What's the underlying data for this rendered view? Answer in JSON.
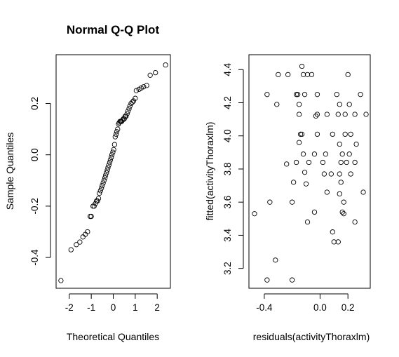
{
  "chart_data": [
    {
      "type": "scatter",
      "title": "Normal Q-Q Plot",
      "xlabel": "Theoretical Quantiles",
      "ylabel": "Sample Quantiles",
      "xlim": [
        -2.6,
        2.6
      ],
      "ylim": [
        -0.52,
        0.39
      ],
      "xticks": [
        -2,
        -1,
        0,
        1,
        2
      ],
      "xtick_labels": [
        "-2",
        "-1",
        "0",
        "1",
        "2"
      ],
      "yticks": [
        -0.4,
        -0.2,
        0.0,
        0.2
      ],
      "ytick_labels": [
        "-0.4",
        "-0.2",
        "0.0",
        "0.2"
      ],
      "grid": false,
      "points": [
        [
          -2.38,
          -0.49
        ],
        [
          -1.92,
          -0.37
        ],
        [
          -1.68,
          -0.35
        ],
        [
          -1.52,
          -0.34
        ],
        [
          -1.38,
          -0.32
        ],
        [
          -1.27,
          -0.31
        ],
        [
          -1.17,
          -0.3
        ],
        [
          -1.05,
          -0.24
        ],
        [
          -1.0,
          -0.24
        ],
        [
          -0.92,
          -0.2
        ],
        [
          -0.87,
          -0.2
        ],
        [
          -0.81,
          -0.19
        ],
        [
          -0.76,
          -0.18
        ],
        [
          -0.72,
          -0.18
        ],
        [
          -0.67,
          -0.17
        ],
        [
          -0.63,
          -0.15
        ],
        [
          -0.58,
          -0.14
        ],
        [
          -0.54,
          -0.13
        ],
        [
          -0.5,
          -0.12
        ],
        [
          -0.46,
          -0.11
        ],
        [
          -0.42,
          -0.1
        ],
        [
          -0.38,
          -0.09
        ],
        [
          -0.35,
          -0.08
        ],
        [
          -0.31,
          -0.07
        ],
        [
          -0.27,
          -0.06
        ],
        [
          -0.24,
          -0.05
        ],
        [
          -0.2,
          -0.04
        ],
        [
          -0.16,
          -0.03
        ],
        [
          -0.13,
          -0.02
        ],
        [
          -0.09,
          -0.01
        ],
        [
          -0.06,
          0.0
        ],
        [
          -0.02,
          0.01
        ],
        [
          0.02,
          0.02
        ],
        [
          0.06,
          0.04
        ],
        [
          0.09,
          0.07
        ],
        [
          0.13,
          0.08
        ],
        [
          0.16,
          0.09
        ],
        [
          0.2,
          0.1
        ],
        [
          0.24,
          0.12
        ],
        [
          0.27,
          0.125
        ],
        [
          0.31,
          0.13
        ],
        [
          0.35,
          0.13
        ],
        [
          0.38,
          0.13
        ],
        [
          0.42,
          0.135
        ],
        [
          0.46,
          0.14
        ],
        [
          0.5,
          0.14
        ],
        [
          0.54,
          0.15
        ],
        [
          0.58,
          0.15
        ],
        [
          0.63,
          0.16
        ],
        [
          0.67,
          0.17
        ],
        [
          0.72,
          0.18
        ],
        [
          0.76,
          0.19
        ],
        [
          0.81,
          0.2
        ],
        [
          0.87,
          0.205
        ],
        [
          0.92,
          0.21
        ],
        [
          1.0,
          0.22
        ],
        [
          1.05,
          0.25
        ],
        [
          1.17,
          0.255
        ],
        [
          1.27,
          0.26
        ],
        [
          1.38,
          0.265
        ],
        [
          1.52,
          0.27
        ],
        [
          1.68,
          0.31
        ],
        [
          1.92,
          0.32
        ],
        [
          2.38,
          0.35
        ]
      ]
    },
    {
      "type": "scatter",
      "title": "",
      "xlabel": "residuals(activityThoraxlm)",
      "ylabel": "fitted(activityThoraxlm)",
      "xlim": [
        -0.51,
        0.36
      ],
      "ylim": [
        3.08,
        4.49
      ],
      "xticks": [
        -0.4,
        0.0,
        0.2
      ],
      "xtick_labels": [
        "-0.4",
        "0.0",
        "0.2"
      ],
      "yticks": [
        3.2,
        3.4,
        3.6,
        3.8,
        4.0,
        4.2,
        4.4
      ],
      "ytick_labels": [
        "3.2",
        "3.4",
        "3.6",
        "3.8",
        "4.0",
        "4.2",
        "4.4"
      ],
      "grid": false,
      "points": [
        [
          -0.13,
          4.42
        ],
        [
          -0.3,
          4.37
        ],
        [
          -0.23,
          4.37
        ],
        [
          -0.12,
          4.37
        ],
        [
          -0.09,
          4.37
        ],
        [
          -0.06,
          4.37
        ],
        [
          0.2,
          4.37
        ],
        [
          -0.38,
          4.25
        ],
        [
          -0.17,
          4.25
        ],
        [
          -0.16,
          4.25
        ],
        [
          -0.11,
          4.25
        ],
        [
          -0.02,
          4.25
        ],
        [
          0.12,
          4.25
        ],
        [
          0.29,
          4.25
        ],
        [
          -0.31,
          4.19
        ],
        [
          -0.15,
          4.19
        ],
        [
          0.14,
          4.19
        ],
        [
          0.21,
          4.19
        ],
        [
          -0.15,
          4.13
        ],
        [
          -0.02,
          4.13
        ],
        [
          -0.03,
          4.12
        ],
        [
          0.05,
          4.13
        ],
        [
          0.13,
          4.13
        ],
        [
          0.18,
          4.13
        ],
        [
          0.25,
          4.13
        ],
        [
          0.33,
          4.13
        ],
        [
          -0.14,
          4.01
        ],
        [
          -0.13,
          4.01
        ],
        [
          -0.02,
          4.01
        ],
        [
          0.09,
          4.01
        ],
        [
          0.18,
          4.01
        ],
        [
          0.22,
          4.01
        ],
        [
          -0.15,
          3.96
        ],
        [
          0.14,
          3.95
        ],
        [
          0.26,
          3.95
        ],
        [
          -0.12,
          3.89
        ],
        [
          0.04,
          3.89
        ],
        [
          -0.04,
          3.89
        ],
        [
          0.16,
          3.89
        ],
        [
          0.21,
          3.89
        ],
        [
          -0.08,
          3.84
        ],
        [
          -0.17,
          3.84
        ],
        [
          0.02,
          3.84
        ],
        [
          0.15,
          3.84
        ],
        [
          0.19,
          3.84
        ],
        [
          0.25,
          3.84
        ],
        [
          -0.24,
          3.83
        ],
        [
          -0.11,
          3.78
        ],
        [
          0.03,
          3.77
        ],
        [
          0.08,
          3.77
        ],
        [
          0.14,
          3.77
        ],
        [
          0.22,
          3.77
        ],
        [
          -0.19,
          3.72
        ],
        [
          -0.1,
          3.71
        ],
        [
          0.15,
          3.72
        ],
        [
          0.05,
          3.66
        ],
        [
          0.14,
          3.65
        ],
        [
          0.31,
          3.66
        ],
        [
          -0.36,
          3.6
        ],
        [
          -0.2,
          3.6
        ],
        [
          0.17,
          3.6
        ],
        [
          -0.47,
          3.53
        ],
        [
          -0.04,
          3.54
        ],
        [
          0.16,
          3.54
        ],
        [
          0.17,
          3.53
        ],
        [
          -0.09,
          3.48
        ],
        [
          0.25,
          3.48
        ],
        [
          0.09,
          3.42
        ],
        [
          0.1,
          3.36
        ],
        [
          0.13,
          3.36
        ],
        [
          -0.32,
          3.25
        ],
        [
          -0.38,
          3.13
        ],
        [
          -0.2,
          3.13
        ]
      ]
    }
  ]
}
